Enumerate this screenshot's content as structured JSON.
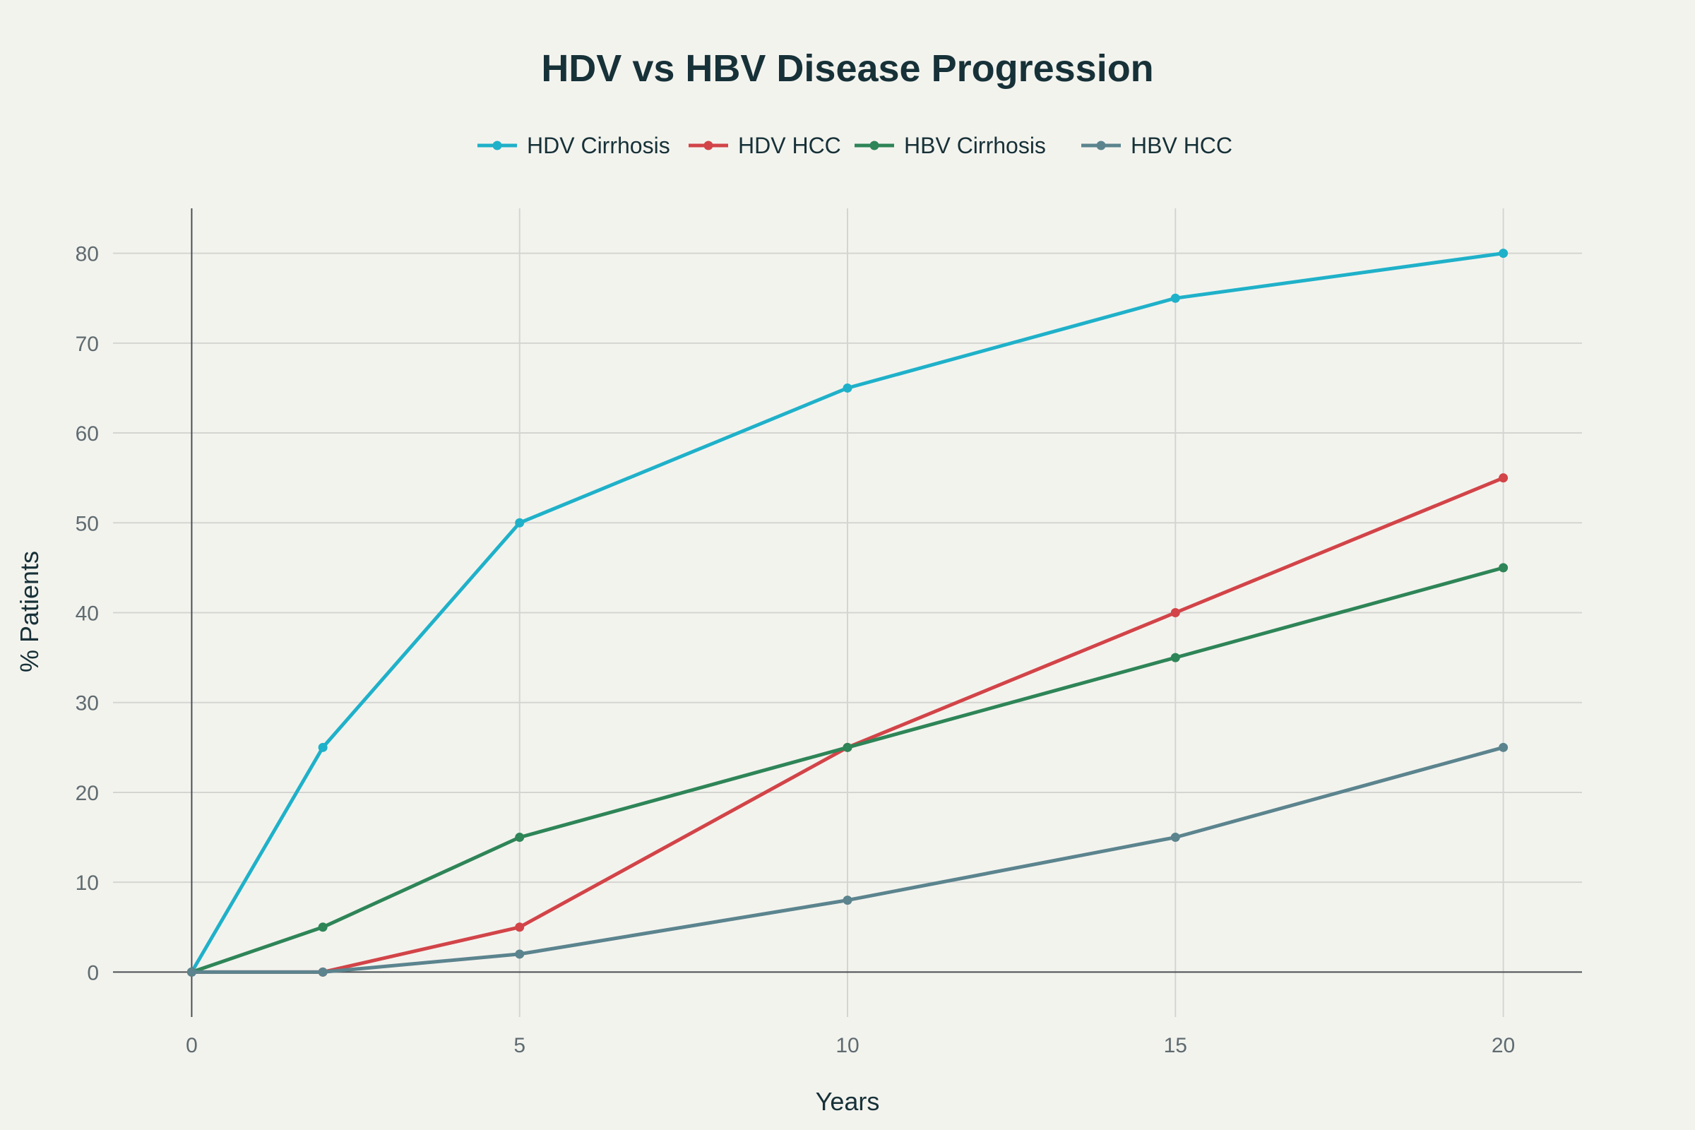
{
  "chart_data": {
    "type": "line",
    "title": "HDV vs HBV Disease Progression",
    "xlabel": "Years",
    "ylabel": "% Patients",
    "xlim": [
      -1.2,
      21.2
    ],
    "ylim": [
      -5,
      85
    ],
    "x_ticks": [
      0,
      5,
      10,
      15,
      20
    ],
    "y_ticks": [
      0,
      10,
      20,
      30,
      40,
      50,
      60,
      70,
      80
    ],
    "grid": true,
    "legend_position": "top",
    "x": [
      0,
      2,
      5,
      10,
      15,
      20
    ],
    "series": [
      {
        "name": "HDV Cirrhosis",
        "color": "#1fb1c9",
        "values": [
          0,
          25,
          50,
          65,
          75,
          80
        ]
      },
      {
        "name": "HDV HCC",
        "color": "#d24448",
        "values": [
          0,
          0,
          5,
          25,
          40,
          55
        ]
      },
      {
        "name": "HBV Cirrhosis",
        "color": "#2e8557",
        "values": [
          0,
          5,
          15,
          25,
          35,
          45
        ]
      },
      {
        "name": "HBV HCC",
        "color": "#5b848e",
        "values": [
          0,
          0,
          2,
          8,
          15,
          25
        ]
      }
    ]
  }
}
